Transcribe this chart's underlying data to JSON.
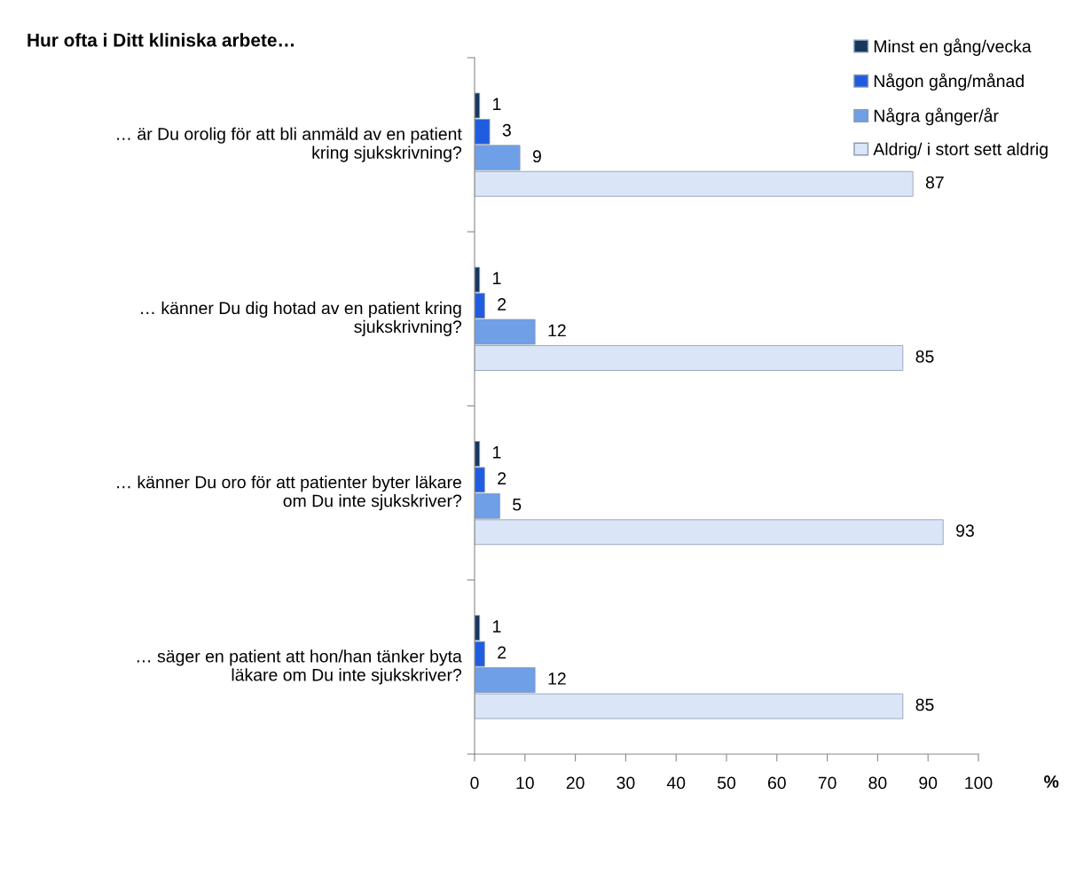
{
  "chart_data": {
    "type": "bar",
    "orientation": "horizontal",
    "title": "Hur ofta i Ditt kliniska arbete…",
    "xlabel": "%",
    "categories": [
      "… är Du orolig för att bli anmäld av en patient\nkring sjukskrivning?",
      "… känner Du dig hotad av en patient kring\nsjukskrivning?",
      "… känner Du oro för att patienter byter läkare\nom Du inte sjukskriver?",
      "… säger en patient att hon/han tänker byta\nläkare om Du inte sjukskriver?"
    ],
    "series": [
      {
        "name": "Minst en gång/vecka",
        "color": "#17375e",
        "values": [
          1,
          1,
          1,
          1
        ]
      },
      {
        "name": "Någon gång/månad",
        "color": "#1f5ce0",
        "values": [
          3,
          2,
          2,
          2
        ]
      },
      {
        "name": "Några gånger/år",
        "color": "#6f9fe6",
        "values": [
          9,
          12,
          5,
          12
        ]
      },
      {
        "name": "Aldrig/ i stort sett aldrig",
        "color": "#dbe5f8",
        "values": [
          87,
          85,
          93,
          85
        ]
      }
    ],
    "xlim": [
      0,
      100
    ],
    "xticks": [
      0,
      10,
      20,
      30,
      40,
      50,
      60,
      70,
      80,
      90,
      100
    ],
    "data_labels": true,
    "legend": "top right",
    "grid": false
  }
}
